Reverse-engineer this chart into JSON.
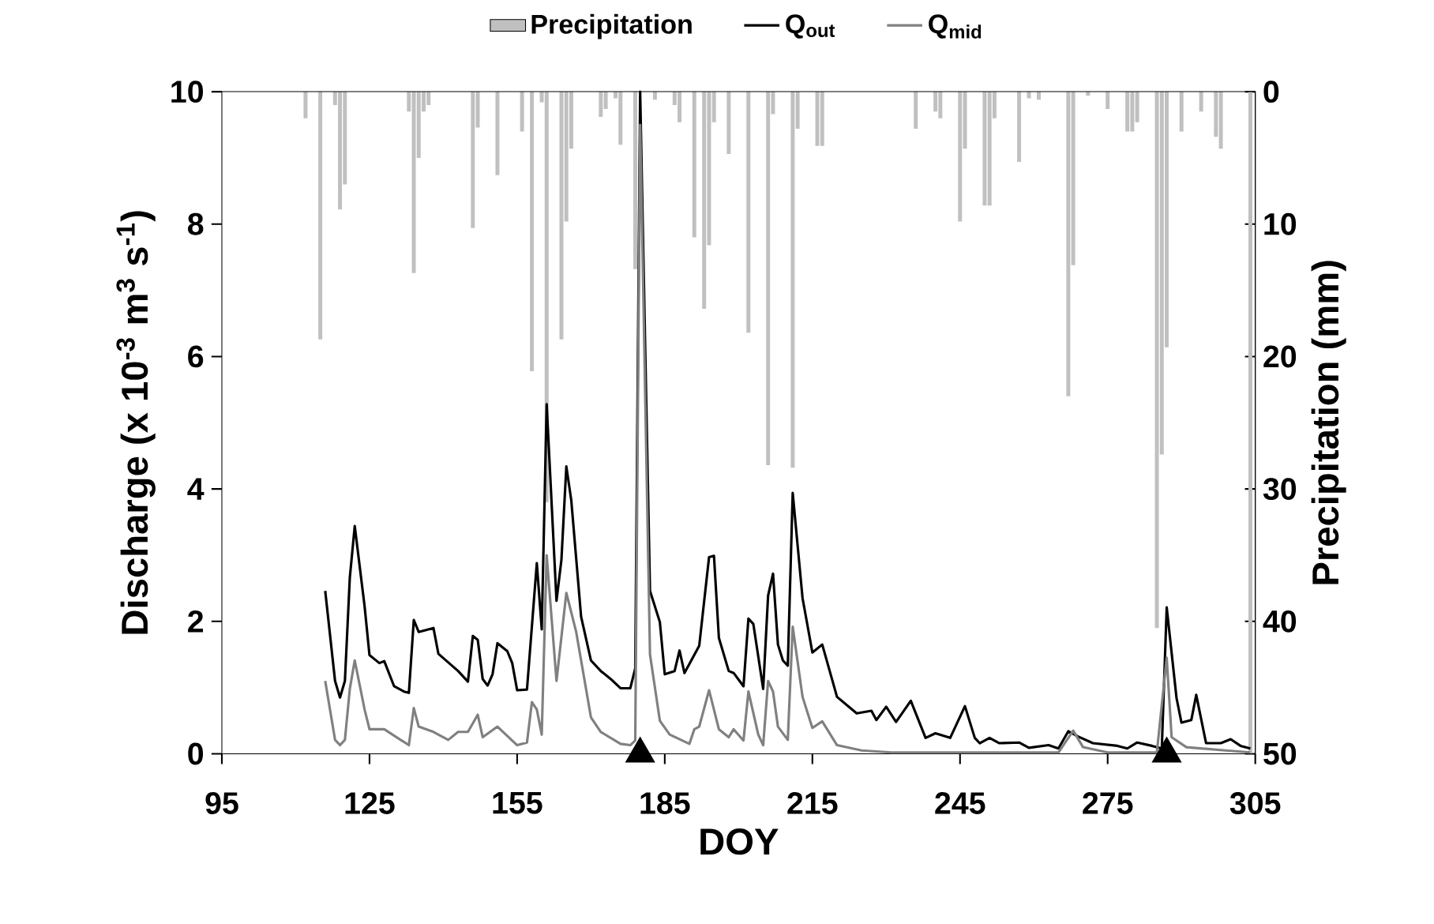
{
  "chart_data": {
    "type": "line",
    "xlabel": "DOY",
    "ylabel": "Discharge (x 10$^{-3}$ m$^{3}$ s$^{-1}$)",
    "y2label": "Precipitation (mm)",
    "xlim": [
      95,
      305
    ],
    "xticks": [
      95,
      125,
      155,
      185,
      215,
      245,
      275,
      305
    ],
    "ylim": [
      0,
      10
    ],
    "yticks": [
      0,
      2,
      4,
      6,
      8,
      10
    ],
    "y2lim": [
      50,
      0
    ],
    "y2ticks": [
      0,
      10,
      20,
      30,
      40,
      50
    ],
    "legend": "top",
    "grid": false,
    "series": [
      {
        "name": "Precipitation",
        "type": "bar",
        "axis": "y2",
        "color": "#c0c0c0",
        "x": [
          112,
          115,
          118,
          119,
          120,
          133,
          134,
          135,
          136,
          137,
          146,
          147,
          151,
          156,
          158,
          160,
          161,
          164,
          165,
          166,
          172,
          173,
          175,
          176,
          179,
          183,
          187,
          188,
          191,
          193,
          194,
          195,
          198,
          202,
          206,
          207,
          211,
          212,
          216,
          217,
          236,
          240,
          241,
          245,
          246,
          250,
          251,
          252,
          257,
          259,
          261,
          267,
          268,
          271,
          275,
          279,
          280,
          281,
          285,
          286,
          287,
          290,
          294,
          297,
          298,
          304
        ],
        "values": [
          2.0,
          18.7,
          1.0,
          8.9,
          7.0,
          1.5,
          13.7,
          5.0,
          1.5,
          1.0,
          10.3,
          2.7,
          6.3,
          3.0,
          21.1,
          0.8,
          31,
          18.7,
          9.8,
          4.3,
          1.9,
          1.3,
          0.5,
          4.0,
          13.4,
          0.6,
          1.0,
          2.3,
          11.0,
          16.4,
          11.6,
          2.3,
          4.7,
          18.2,
          28.2,
          1.7,
          28.4,
          2.8,
          4.1,
          4.1,
          2.8,
          1.5,
          2.0,
          9.8,
          4.3,
          8.6,
          8.6,
          2.0,
          5.3,
          0.5,
          0.6,
          23.0,
          13.1,
          0.3,
          1.3,
          3.0,
          3.0,
          2.3,
          40.5,
          27.4,
          19.3,
          3.0,
          1.5,
          3.4,
          4.3,
          50
        ]
      },
      {
        "name": "Q$_{out}$",
        "color": "#000000",
        "x": [
          116,
          118,
          119,
          120,
          121,
          122,
          124,
          125,
          127,
          128,
          130,
          132,
          133,
          134,
          135,
          138,
          139,
          143,
          145,
          146,
          147,
          148,
          149,
          150,
          151,
          153,
          154,
          155,
          157,
          159,
          160,
          161,
          163,
          164,
          165,
          166,
          168,
          170,
          172,
          174,
          176,
          178,
          179,
          180,
          182,
          184,
          185,
          187,
          188,
          189,
          192,
          194,
          195,
          196,
          198,
          199,
          201,
          202,
          203,
          205,
          206,
          207,
          208,
          209,
          210,
          211,
          213,
          215,
          217,
          220,
          224,
          227,
          228,
          230,
          232,
          235,
          238,
          240,
          243,
          246,
          248,
          249,
          251,
          253,
          257,
          259,
          263,
          265,
          267,
          269,
          272,
          277,
          279,
          281,
          284,
          286,
          287,
          289,
          290,
          292,
          293,
          295,
          298,
          300,
          302,
          304
        ],
        "values": [
          2.46,
          1.1,
          0.85,
          1.1,
          2.66,
          3.44,
          2.23,
          1.49,
          1.37,
          1.4,
          1.02,
          0.94,
          0.92,
          2.02,
          1.84,
          1.9,
          1.51,
          1.25,
          1.09,
          1.78,
          1.72,
          1.13,
          1.03,
          1.2,
          1.67,
          1.55,
          1.37,
          0.96,
          0.97,
          2.88,
          1.88,
          5.28,
          2.31,
          2.93,
          4.34,
          3.83,
          2.07,
          1.41,
          1.25,
          1.13,
          0.99,
          0.99,
          1.29,
          10,
          2.46,
          1.99,
          1.2,
          1.25,
          1.56,
          1.22,
          1.63,
          2.97,
          2.99,
          1.75,
          1.25,
          1.22,
          1.02,
          2.04,
          1.96,
          0.98,
          2.39,
          2.72,
          1.65,
          1.41,
          1.33,
          3.94,
          2.35,
          1.53,
          1.65,
          0.86,
          0.61,
          0.65,
          0.51,
          0.71,
          0.48,
          0.8,
          0.24,
          0.31,
          0.24,
          0.72,
          0.24,
          0.16,
          0.24,
          0.16,
          0.17,
          0.09,
          0.13,
          0.08,
          0.34,
          0.26,
          0.16,
          0.12,
          0.08,
          0.17,
          0.12,
          0.08,
          2.21,
          0.84,
          0.47,
          0.51,
          0.89,
          0.16,
          0.16,
          0.22,
          0.12,
          0.08
        ]
      },
      {
        "name": "Q$_{mid}$",
        "color": "#808080",
        "x": [
          116,
          118,
          119,
          120,
          121,
          122,
          124,
          125,
          128,
          133,
          134,
          135,
          138,
          141,
          143,
          145,
          147,
          148,
          151,
          155,
          157,
          158,
          159,
          160,
          161,
          163,
          165,
          167,
          170,
          172,
          176,
          178,
          179,
          180,
          182,
          184,
          186,
          190,
          191,
          192,
          194,
          196,
          198,
          199,
          201,
          202,
          204,
          205,
          206,
          207,
          208,
          210,
          211,
          213,
          215,
          217,
          220,
          225,
          231,
          242,
          252,
          265,
          268,
          270,
          275,
          285,
          287,
          288,
          291,
          299,
          304
        ],
        "values": [
          1.1,
          0.21,
          0.13,
          0.21,
          0.98,
          1.41,
          0.67,
          0.37,
          0.37,
          0.13,
          0.69,
          0.41,
          0.33,
          0.21,
          0.33,
          0.33,
          0.59,
          0.25,
          0.41,
          0.13,
          0.17,
          0.78,
          0.67,
          0.29,
          3.0,
          1.1,
          2.43,
          1.84,
          0.55,
          0.33,
          0.15,
          0.13,
          0.2,
          9.5,
          1.5,
          0.5,
          0.29,
          0.15,
          0.37,
          0.41,
          0.96,
          0.37,
          0.25,
          0.37,
          0.2,
          0.94,
          0.29,
          0.13,
          1.1,
          0.94,
          0.41,
          0.21,
          1.92,
          0.86,
          0.39,
          0.49,
          0.13,
          0.05,
          0.02,
          0.02,
          0.02,
          0.02,
          0.35,
          0.1,
          0.02,
          0.02,
          1.45,
          0.25,
          0.1,
          0.05,
          0.02
        ]
      },
      {
        "type": "scatter",
        "marker": "triangle",
        "color": "#000000",
        "x": [
          180,
          287
        ],
        "values": [
          0,
          0
        ]
      }
    ]
  }
}
